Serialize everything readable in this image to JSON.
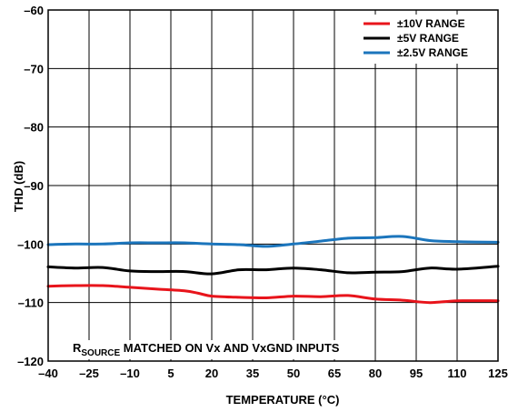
{
  "chart_data": {
    "type": "line",
    "xlabel": "TEMPERATURE (°C)",
    "ylabel": "THD (dB)",
    "xlim": [
      -40,
      125
    ],
    "ylim": [
      -120,
      -60
    ],
    "x_ticks": [
      -40,
      -25,
      -10,
      5,
      20,
      35,
      50,
      65,
      80,
      95,
      110,
      125
    ],
    "y_ticks": [
      -60,
      -70,
      -80,
      -90,
      -100,
      -110,
      -120
    ],
    "x_tick_labels": [
      "–40",
      "–25",
      "–10",
      "5",
      "20",
      "35",
      "50",
      "65",
      "80",
      "95",
      "110",
      "125"
    ],
    "y_tick_labels": [
      "–60",
      "–70",
      "–80",
      "–90",
      "–100",
      "–110",
      "–120"
    ],
    "grid": true,
    "legend_position": "top-right",
    "annotation": {
      "main": "R",
      "subscript": "SOURCE",
      "rest": " MATCHED ON Vx AND VxGND INPUTS"
    },
    "series": [
      {
        "name": "±10V RANGE",
        "color": "#e8141b",
        "x": [
          -40,
          -30,
          -20,
          -10,
          0,
          10,
          15,
          20,
          30,
          40,
          50,
          60,
          70,
          80,
          90,
          100,
          110,
          125
        ],
        "y": [
          -107.2,
          -107.1,
          -107.1,
          -107.4,
          -107.7,
          -108.0,
          -108.4,
          -108.9,
          -109.1,
          -109.2,
          -108.9,
          -109.0,
          -108.8,
          -109.4,
          -109.6,
          -110.0,
          -109.7,
          -109.7
        ]
      },
      {
        "name": "±5V RANGE",
        "color": "#000000",
        "x": [
          -40,
          -30,
          -20,
          -10,
          0,
          10,
          20,
          30,
          40,
          50,
          60,
          70,
          80,
          90,
          100,
          110,
          125
        ],
        "y": [
          -103.9,
          -104.1,
          -104.0,
          -104.6,
          -104.7,
          -104.7,
          -105.1,
          -104.4,
          -104.4,
          -104.1,
          -104.4,
          -104.9,
          -104.8,
          -104.7,
          -104.1,
          -104.3,
          -103.8
        ]
      },
      {
        "name": "±2.5V RANGE",
        "color": "#1b75bc",
        "x": [
          -40,
          -30,
          -20,
          -10,
          0,
          10,
          20,
          30,
          40,
          50,
          60,
          70,
          80,
          90,
          100,
          110,
          125
        ],
        "y": [
          -100.1,
          -100.0,
          -100.0,
          -99.8,
          -99.8,
          -99.8,
          -100.0,
          -100.1,
          -100.4,
          -100.0,
          -99.5,
          -99.0,
          -98.9,
          -98.7,
          -99.4,
          -99.6,
          -99.7
        ]
      }
    ]
  }
}
